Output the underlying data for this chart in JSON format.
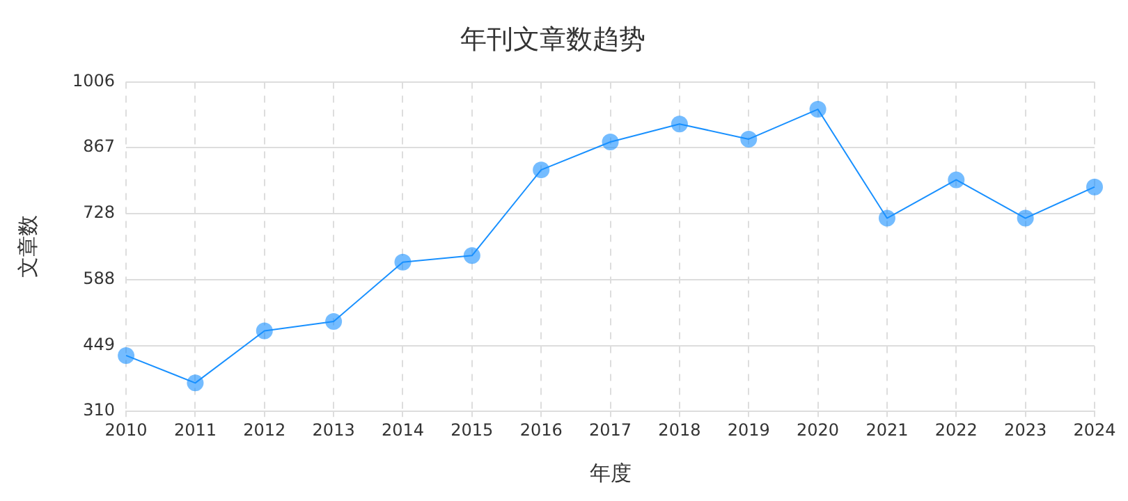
{
  "chart_data": {
    "type": "line",
    "title": "年刊文章数趋势",
    "xlabel": "年度",
    "ylabel": "文章数",
    "categories": [
      "2010",
      "2011",
      "2012",
      "2013",
      "2014",
      "2015",
      "2016",
      "2017",
      "2018",
      "2019",
      "2020",
      "2021",
      "2022",
      "2023",
      "2024"
    ],
    "series": [
      {
        "color": "#1890ff",
        "values": [
          428,
          370,
          480,
          500,
          625,
          639,
          820,
          879,
          917,
          885,
          948,
          718,
          799,
          718,
          784
        ]
      }
    ],
    "ylim": [
      310,
      1006
    ],
    "yticks": [
      310,
      449,
      588,
      728,
      867,
      1006
    ],
    "grid": true,
    "legend": false,
    "marker": "circle",
    "line_style": "solid"
  }
}
